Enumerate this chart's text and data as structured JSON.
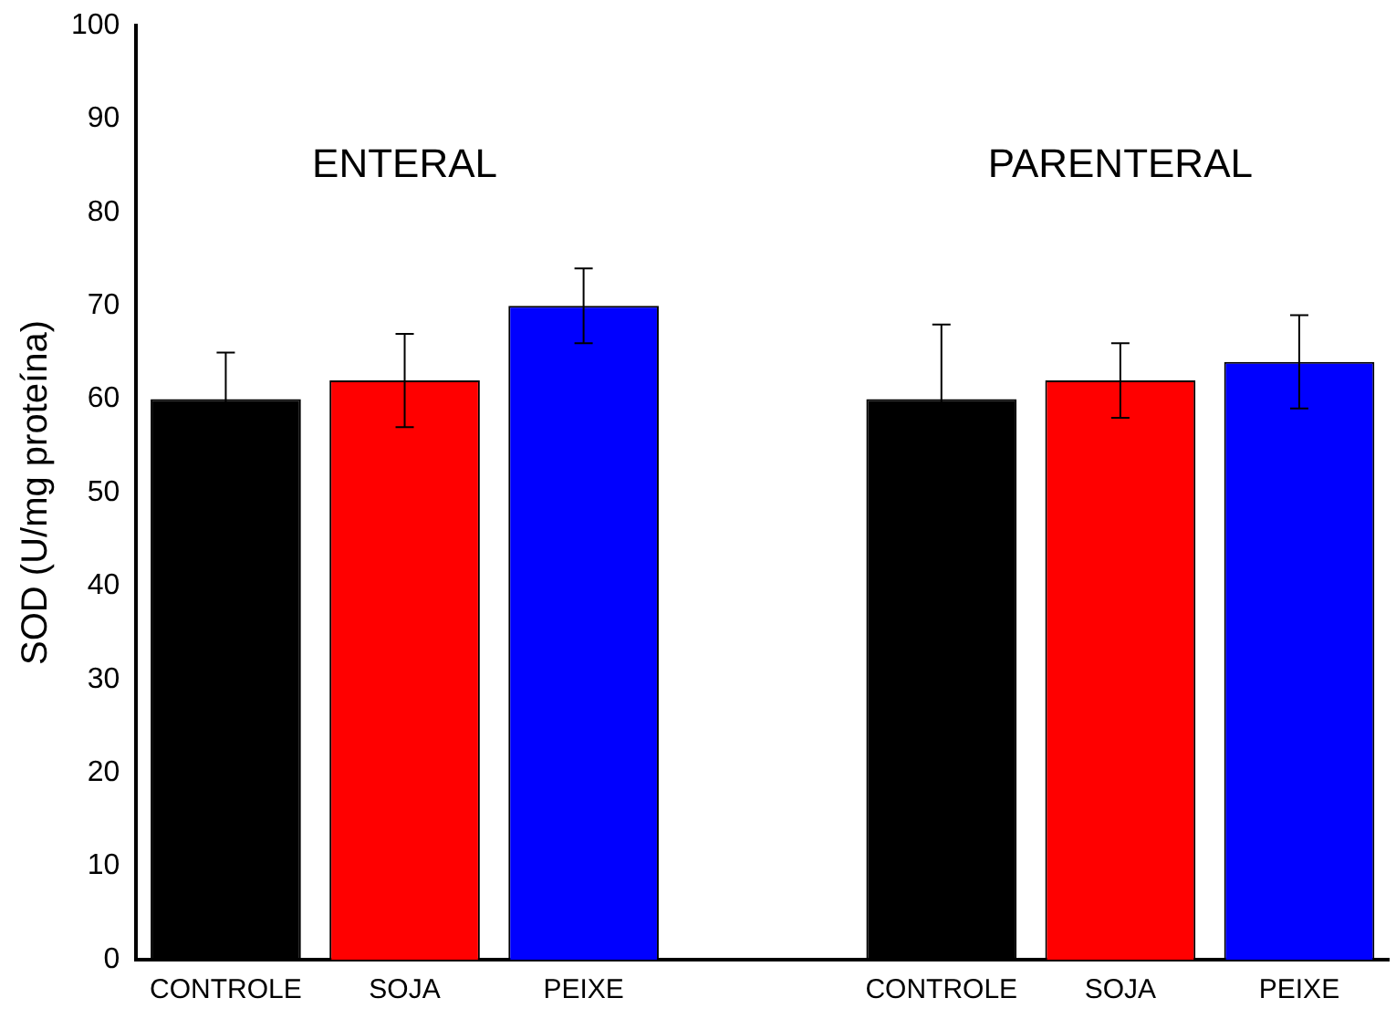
{
  "chart_data": {
    "type": "bar",
    "ylabel": "SOD (U/mg proteína)",
    "categories": [
      "CONTROLE",
      "SOJA",
      "PEIXE",
      null,
      "CONTROLE",
      "SOJA",
      "PEIXE"
    ],
    "values": [
      60,
      62,
      70,
      null,
      60,
      62,
      64
    ],
    "colors": [
      "#000000",
      "#ff0000",
      "#0000ff",
      null,
      "#000000",
      "#ff0000",
      "#0000ff"
    ],
    "errors": [
      5,
      5,
      4,
      null,
      8,
      4,
      5
    ],
    "annotations": [
      "ENTERAL",
      "PARENTERAL"
    ],
    "ylim": [
      0,
      100
    ],
    "yticks": [
      0,
      10,
      20,
      30,
      40,
      50,
      60,
      70,
      80,
      90,
      100
    ],
    "grid": false,
    "legend": false
  }
}
